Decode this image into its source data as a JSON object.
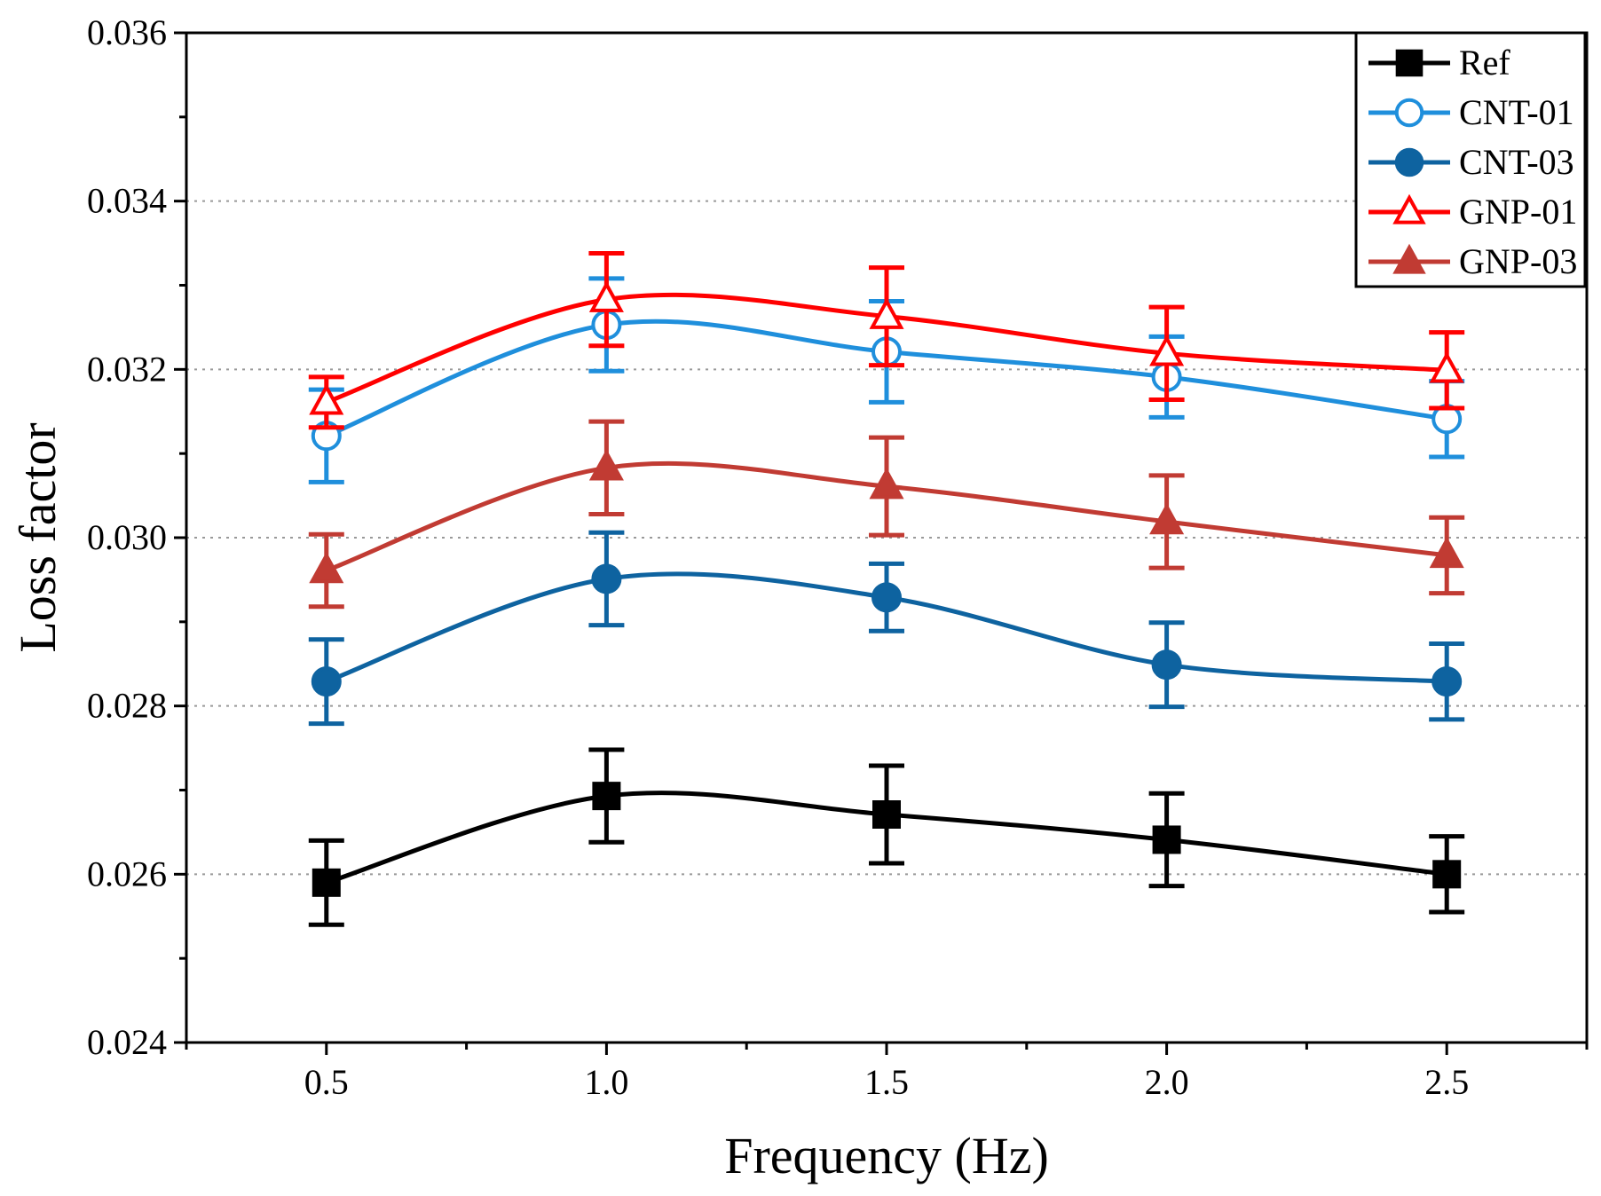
{
  "chart_data": {
    "type": "line",
    "xlabel": "Frequency (Hz)",
    "ylabel": "Loss factor",
    "xlim": [
      0.25,
      2.75
    ],
    "ylim": [
      0.024,
      0.036
    ],
    "x": [
      0.5,
      1.0,
      1.5,
      2.0,
      2.5
    ],
    "x_tick_labels": [
      "0.5",
      "1.0",
      "1.5",
      "2.0",
      "2.5"
    ],
    "y_ticks": [
      0.024,
      0.026,
      0.028,
      0.03,
      0.032,
      0.034,
      0.036
    ],
    "y_tick_labels": [
      "0.024",
      "0.026",
      "0.028",
      "0.030",
      "0.032",
      "0.034",
      "0.036"
    ],
    "grid": "horizontal dotted",
    "legend_position": "top-right",
    "series": [
      {
        "name": "Ref",
        "marker": "square-filled",
        "color": "#000000",
        "values": [
          0.0259,
          0.02693,
          0.02671,
          0.02641,
          0.026
        ],
        "errors": [
          0.0005,
          0.00055,
          0.00058,
          0.00055,
          0.00045
        ]
      },
      {
        "name": "CNT-01",
        "marker": "circle-open",
        "color": "#1f8fdc",
        "values": [
          0.03121,
          0.03253,
          0.03221,
          0.03191,
          0.03141
        ],
        "errors": [
          0.00055,
          0.00055,
          0.0006,
          0.00048,
          0.00045
        ]
      },
      {
        "name": "CNT-03",
        "marker": "circle-filled",
        "color": "#0e63a0",
        "values": [
          0.02829,
          0.02951,
          0.02929,
          0.02849,
          0.02829
        ],
        "errors": [
          0.0005,
          0.00055,
          0.0004,
          0.0005,
          0.00045
        ]
      },
      {
        "name": "GNP-01",
        "marker": "triangle-open",
        "color": "#ff0000",
        "values": [
          0.03161,
          0.03283,
          0.03263,
          0.03219,
          0.03199
        ],
        "errors": [
          0.0003,
          0.00055,
          0.00058,
          0.00055,
          0.00045
        ]
      },
      {
        "name": "GNP-03",
        "marker": "triangle-filled",
        "color": "#c13b33",
        "values": [
          0.02961,
          0.03083,
          0.03061,
          0.03019,
          0.02979
        ],
        "errors": [
          0.00043,
          0.00055,
          0.00058,
          0.00055,
          0.00045
        ]
      }
    ]
  }
}
